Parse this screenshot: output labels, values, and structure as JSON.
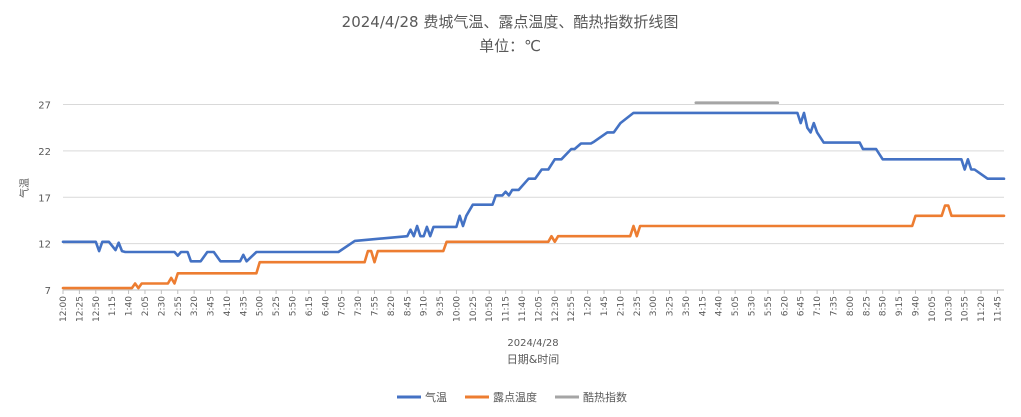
{
  "chart_data": {
    "type": "line",
    "title": "2024/4/28 费城气温、露点温度、酷热指数折线图",
    "subtitle": "单位：℃",
    "xlabel": "日期&时间",
    "ylabel": "气温",
    "x_date_label": "2024/4/28",
    "ylim": [
      7,
      29
    ],
    "yticks": [
      7,
      12,
      17,
      22,
      27
    ],
    "grid": true,
    "legend_position": "bottom",
    "x_tick_labels": [
      "12:00",
      "12:25",
      "12:50",
      "1:15",
      "1:40",
      "2:05",
      "2:30",
      "2:55",
      "3:20",
      "3:45",
      "4:10",
      "4:35",
      "5:00",
      "5:25",
      "5:50",
      "6:15",
      "6:40",
      "7:05",
      "7:30",
      "7:55",
      "8:20",
      "8:45",
      "9:10",
      "9:35",
      "10:00",
      "10:25",
      "10:50",
      "11:15",
      "11:40",
      "12:05",
      "12:30",
      "12:55",
      "1:20",
      "1:45",
      "2:10",
      "2:35",
      "3:00",
      "3:25",
      "3:50",
      "4:15",
      "4:40",
      "5:05",
      "5:30",
      "5:55",
      "6:20",
      "6:45",
      "7:10",
      "7:35",
      "8:00",
      "8:25",
      "8:50",
      "9:15",
      "9:40",
      "10:05",
      "10:30",
      "10:55",
      "11:20",
      "11:45"
    ],
    "x_start_minutes": 0,
    "x_end_minutes": 1435,
    "tick_step_minutes": 25,
    "series": [
      {
        "name": "气温",
        "color": "#4472C4",
        "x_minutes": [
          0,
          50,
          55,
          60,
          70,
          80,
          85,
          90,
          95,
          100,
          170,
          175,
          180,
          190,
          195,
          210,
          220,
          230,
          240,
          245,
          250,
          270,
          275,
          280,
          295,
          300,
          305,
          420,
          445,
          525,
          530,
          535,
          540,
          545,
          550,
          555,
          560,
          565,
          600,
          605,
          610,
          615,
          625,
          630,
          655,
          660,
          670,
          675,
          680,
          685,
          690,
          695,
          710,
          720,
          730,
          740,
          750,
          760,
          775,
          780,
          790,
          805,
          810,
          830,
          840,
          850,
          870,
          880,
          965,
          1090,
          1095,
          1120,
          1125,
          1130,
          1135,
          1140,
          1145,
          1150,
          1160,
          1170,
          1180,
          1190,
          1200,
          1215,
          1220,
          1240,
          1250,
          1265,
          1270,
          1280,
          1370,
          1375,
          1380,
          1385,
          1390,
          1400,
          1410,
          1415,
          1425,
          1435
        ],
        "values": [
          12.2,
          12.2,
          11.2,
          12.2,
          12.2,
          11.3,
          12.1,
          11.2,
          11.1,
          11.1,
          11.1,
          10.7,
          11.1,
          11.1,
          10.1,
          10.1,
          11.1,
          11.1,
          10.1,
          10.1,
          10.1,
          10.1,
          10.8,
          10.1,
          11.1,
          11.1,
          11.1,
          11.1,
          12.3,
          12.8,
          13.5,
          12.8,
          13.9,
          12.8,
          12.8,
          13.8,
          12.8,
          13.8,
          13.8,
          15.0,
          13.9,
          15.0,
          16.2,
          16.2,
          16.2,
          17.2,
          17.2,
          17.6,
          17.2,
          17.8,
          17.8,
          17.8,
          19.0,
          19.0,
          20.0,
          20.0,
          21.1,
          21.1,
          22.2,
          22.2,
          22.8,
          22.8,
          23.0,
          24.0,
          24.0,
          25.0,
          26.1,
          26.1,
          26.1,
          26.1,
          26.1,
          26.1,
          25.0,
          26.1,
          24.5,
          24.0,
          25.0,
          24.0,
          22.9,
          22.9,
          22.9,
          22.9,
          22.9,
          22.9,
          22.2,
          22.2,
          21.1,
          21.1,
          21.1,
          21.1,
          21.1,
          20.0,
          21.1,
          20.0,
          20.0,
          19.5,
          19.0,
          19.0,
          19.0,
          19.0
        ]
      },
      {
        "name": "露点温度",
        "color": "#ED7D31",
        "x_minutes": [
          0,
          105,
          110,
          115,
          120,
          125,
          160,
          165,
          170,
          175,
          290,
          295,
          300,
          305,
          460,
          465,
          470,
          475,
          480,
          485,
          580,
          585,
          590,
          595,
          600,
          740,
          745,
          750,
          755,
          760,
          865,
          870,
          875,
          880,
          885,
          1295,
          1300,
          1310,
          1330,
          1340,
          1345,
          1350,
          1355,
          1435
        ],
        "values": [
          7.2,
          7.2,
          7.7,
          7.2,
          7.7,
          7.7,
          7.7,
          8.3,
          7.7,
          8.8,
          8.8,
          8.8,
          10.0,
          10.0,
          10.0,
          11.2,
          11.2,
          10.0,
          11.2,
          11.2,
          11.2,
          12.2,
          12.2,
          12.2,
          12.2,
          12.2,
          12.8,
          12.2,
          12.8,
          12.8,
          12.8,
          13.9,
          12.8,
          13.9,
          13.9,
          13.9,
          15.0,
          15.0,
          15.0,
          15.0,
          16.1,
          16.1,
          15.0,
          15.0
        ]
      },
      {
        "name": "酷热指数",
        "color": "#A5A5A5",
        "x_minutes": [
          965,
          1090
        ],
        "values": [
          27.2,
          27.2
        ]
      }
    ]
  }
}
